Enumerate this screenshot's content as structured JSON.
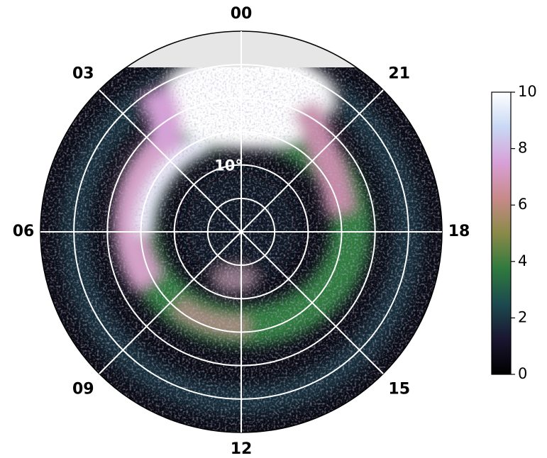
{
  "chart_data": {
    "type": "polar-heatmap",
    "theta_labels": [
      "00",
      "03",
      "06",
      "09",
      "12",
      "15",
      "18",
      "21"
    ],
    "rlim": [
      0,
      30
    ],
    "rticks": [
      5,
      10,
      15,
      20,
      25
    ],
    "rtick_label": {
      "value": 10,
      "label": "10°"
    },
    "grid": true,
    "colormap": [
      "#000000",
      "#1a1530",
      "#1c4a4f",
      "#2f7a3e",
      "#8a8a48",
      "#c88a8a",
      "#d8a0d8",
      "#c8d8f4",
      "#ffffff"
    ],
    "clim": [
      0,
      10
    ],
    "cticks": [
      0,
      2,
      4,
      6,
      8,
      10
    ]
  }
}
